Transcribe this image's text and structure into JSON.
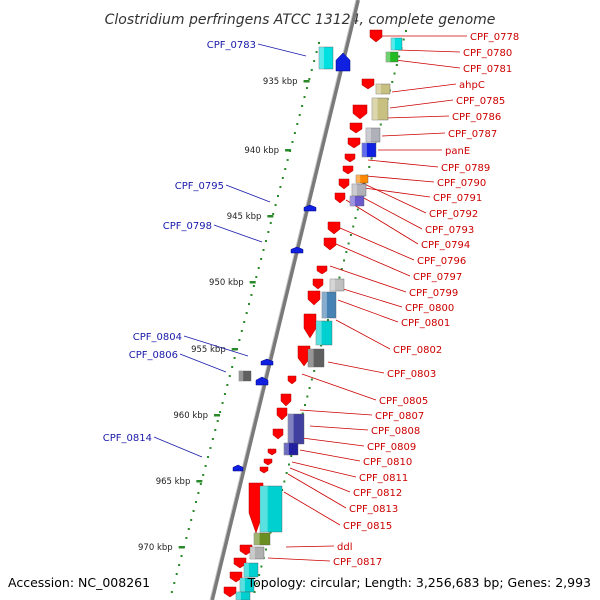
{
  "header": {
    "title": "Clostridium perfringens ATCC 13124, complete genome"
  },
  "footer": {
    "accession": "Accession: NC_008261",
    "summary": "Topology: circular; Length: 3,256,683 bp; Genes: 2,993"
  },
  "colors": {
    "backbone": "#7a7a7a",
    "tick": "#2a8a2a",
    "forward_feature": "#1020e0",
    "reverse_feature": "#ff0000",
    "forward_label": "#1a1aaa",
    "reverse_label": "#cc0000",
    "leader_forward": "#1a1aaa",
    "leader_reverse": "#cc0000"
  },
  "scale": {
    "ticks": [
      {
        "label": "935 kbp"
      },
      {
        "label": "940 kbp"
      },
      {
        "label": "945 kbp"
      },
      {
        "label": "950 kbp"
      },
      {
        "label": "955 kbp"
      },
      {
        "label": "960 kbp"
      },
      {
        "label": "965 kbp"
      },
      {
        "label": "970 kbp"
      }
    ]
  },
  "reverse_labels": [
    "CPF_0778",
    "CPF_0780",
    "CPF_0781",
    "ahpC",
    "CPF_0785",
    "CPF_0786",
    "CPF_0787",
    "panE",
    "CPF_0789",
    "CPF_0790",
    "CPF_0791",
    "CPF_0792",
    "CPF_0793",
    "CPF_0794",
    "CPF_0796",
    "CPF_0797",
    "CPF_0799",
    "CPF_0800",
    "CPF_0801",
    "CPF_0802",
    "CPF_0803",
    "CPF_0805",
    "CPF_0807",
    "CPF_0808",
    "CPF_0809",
    "CPF_0810",
    "CPF_0811",
    "CPF_0812",
    "CPF_0813",
    "CPF_0815",
    "ddl",
    "CPF_0817"
  ],
  "forward_labels": [
    "CPF_0783",
    "CPF_0795",
    "CPF_0798",
    "CPF_0804",
    "CPF_0806",
    "CPF_0814"
  ]
}
